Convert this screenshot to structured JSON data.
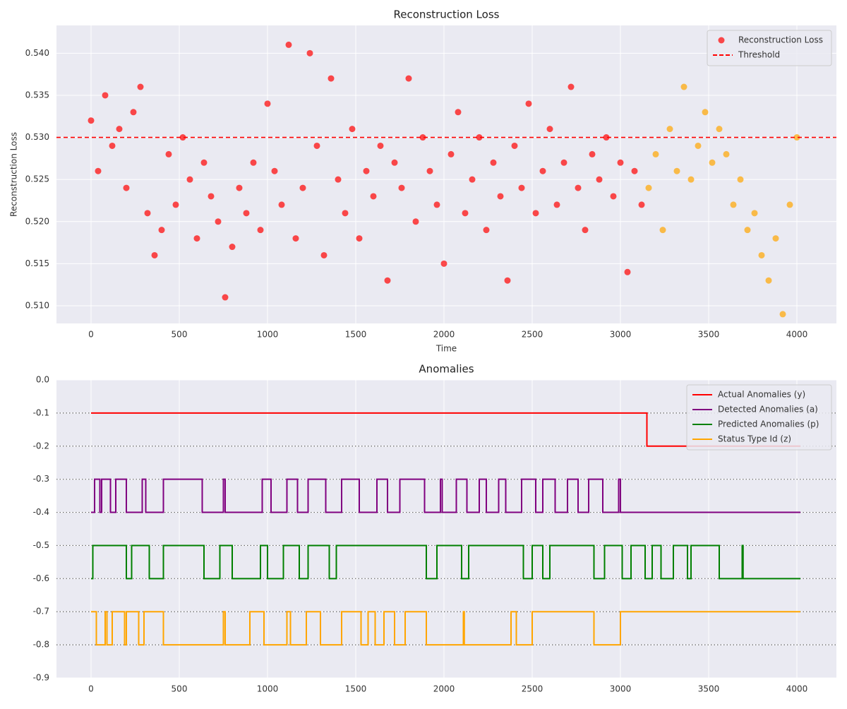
{
  "chart_data": [
    {
      "type": "scatter",
      "title": "Reconstruction Loss",
      "xlabel": "Time",
      "ylabel": "Reconstruction Loss",
      "xlim": [
        -196,
        4224
      ],
      "xticks": [
        0,
        500,
        1000,
        1500,
        2000,
        2500,
        3000,
        3500,
        4000
      ],
      "ylim": [
        0.5079,
        0.5433
      ],
      "yticks": [
        {
          "value": 0.51,
          "label": "0.510"
        },
        0.515,
        {
          "value": 0.52,
          "label": "0.520"
        },
        0.525,
        {
          "value": 0.53,
          "label": "0.530"
        },
        0.535,
        {
          "value": 0.54,
          "label": "0.540"
        }
      ],
      "grid": true,
      "legend": "upper right",
      "series": [
        {
          "name": "Reconstruction Loss",
          "color": "#ff0000",
          "x": [
            0,
            40,
            80,
            120,
            160,
            200,
            240,
            280,
            320,
            360,
            400,
            440,
            480,
            520,
            560,
            600,
            640,
            680,
            720,
            760,
            800,
            840,
            880,
            920,
            960,
            1000,
            1040,
            1080,
            1120,
            1160,
            1200,
            1240,
            1280,
            1320,
            1360,
            1400,
            1440,
            1480,
            1520,
            1560,
            1600,
            1640,
            1680,
            1720,
            1760,
            1800,
            1840,
            1880,
            1920,
            1960,
            2000,
            2040,
            2080,
            2120,
            2160,
            2200,
            2240,
            2280,
            2320,
            2360,
            2400,
            2440,
            2480,
            2520,
            2560,
            2600,
            2640,
            2680,
            2720,
            2760,
            2800,
            2840,
            2880,
            2920,
            2960,
            3000,
            3040,
            3080,
            3120
          ],
          "values": [
            0.532,
            0.526,
            0.535,
            0.529,
            0.531,
            0.524,
            0.533,
            0.536,
            0.521,
            0.516,
            0.519,
            0.528,
            0.522,
            0.53,
            0.525,
            0.518,
            0.527,
            0.523,
            0.52,
            0.511,
            0.517,
            0.524,
            0.521,
            0.527,
            0.519,
            0.534,
            0.526,
            0.522,
            0.541,
            0.518,
            0.524,
            0.54,
            0.529,
            0.516,
            0.537,
            0.525,
            0.521,
            0.531,
            0.518,
            0.526,
            0.523,
            0.529,
            0.513,
            0.527,
            0.524,
            0.537,
            0.52,
            0.53,
            0.526,
            0.522,
            0.515,
            0.528,
            0.533,
            0.521,
            0.525,
            0.53,
            0.519,
            0.527,
            0.523,
            0.513,
            0.529,
            0.524,
            0.534,
            0.521,
            0.526,
            0.531,
            0.522,
            0.527,
            0.536,
            0.524,
            0.519,
            0.528,
            0.525,
            0.53,
            0.523,
            0.527,
            0.514,
            0.526,
            0.522
          ]
        },
        {
          "color": "#ffa500",
          "x": [
            3160,
            3200,
            3240,
            3280,
            3320,
            3360,
            3400,
            3440,
            3480,
            3520,
            3560,
            3600,
            3640,
            3680,
            3720,
            3760,
            3800,
            3840,
            3880,
            3920,
            3960,
            4000
          ],
          "values": [
            0.524,
            0.528,
            0.519,
            0.531,
            0.526,
            0.536,
            0.525,
            0.529,
            0.533,
            0.527,
            0.531,
            0.528,
            0.522,
            0.525,
            0.519,
            0.521,
            0.516,
            0.513,
            0.518,
            0.509,
            0.522,
            0.53
          ]
        }
      ],
      "threshold": {
        "name": "Threshold",
        "value": 0.53,
        "color": "#ff0000"
      }
    },
    {
      "type": "step",
      "title": "Anomalies",
      "xlim": [
        -196,
        4224
      ],
      "xticks": [
        0,
        500,
        1000,
        1500,
        2000,
        2500,
        3000,
        3500,
        4000
      ],
      "ylim": [
        -0.9,
        0
      ],
      "yticks": [
        {
          "value": 0,
          "label": "0.0"
        },
        -0.1,
        -0.2,
        -0.3,
        -0.4,
        -0.5,
        -0.6,
        -0.7,
        -0.8,
        -0.9
      ],
      "grid": true,
      "legend": "upper right",
      "hlines": [
        -0.1,
        -0.2,
        -0.3,
        -0.4,
        -0.5,
        -0.6,
        -0.7,
        -0.8
      ],
      "series": [
        {
          "name": "Actual Anomalies (y)",
          "color": "#ff0000",
          "x": [
            0,
            3150,
            4020
          ],
          "values": [
            -0.1,
            -0.2,
            -0.2
          ]
        },
        {
          "name": "Detected Anomalies (a)",
          "color": "#800080",
          "x": [
            0,
            20,
            50,
            60,
            110,
            140,
            200,
            290,
            310,
            410,
            630,
            750,
            760,
            970,
            1020,
            1110,
            1170,
            1230,
            1330,
            1420,
            1520,
            1620,
            1680,
            1750,
            1890,
            1980,
            1990,
            2070,
            2130,
            2200,
            2240,
            2310,
            2350,
            2440,
            2520,
            2560,
            2630,
            2700,
            2760,
            2820,
            2900,
            2990,
            3000,
            4020
          ],
          "values": [
            -0.4,
            -0.3,
            -0.4,
            -0.3,
            -0.4,
            -0.3,
            -0.4,
            -0.3,
            -0.4,
            -0.3,
            -0.4,
            -0.3,
            -0.4,
            -0.3,
            -0.4,
            -0.3,
            -0.4,
            -0.3,
            -0.4,
            -0.3,
            -0.4,
            -0.3,
            -0.4,
            -0.3,
            -0.4,
            -0.3,
            -0.4,
            -0.3,
            -0.4,
            -0.3,
            -0.4,
            -0.3,
            -0.4,
            -0.3,
            -0.4,
            -0.3,
            -0.4,
            -0.3,
            -0.4,
            -0.3,
            -0.4,
            -0.3,
            -0.4,
            -0.4
          ]
        },
        {
          "name": "Predicted Anomalies (p)",
          "color": "#008000",
          "x": [
            0,
            10,
            200,
            230,
            330,
            410,
            640,
            730,
            800,
            960,
            1000,
            1090,
            1180,
            1230,
            1350,
            1390,
            1900,
            1960,
            2100,
            2140,
            2450,
            2500,
            2560,
            2600,
            2850,
            2910,
            3010,
            3060,
            3140,
            3180,
            3230,
            3300,
            3380,
            3400,
            3560,
            3690,
            3695,
            4020
          ],
          "values": [
            -0.6,
            -0.5,
            -0.6,
            -0.5,
            -0.6,
            -0.5,
            -0.6,
            -0.5,
            -0.6,
            -0.5,
            -0.6,
            -0.5,
            -0.6,
            -0.5,
            -0.6,
            -0.5,
            -0.6,
            -0.5,
            -0.6,
            -0.5,
            -0.6,
            -0.5,
            -0.6,
            -0.5,
            -0.6,
            -0.5,
            -0.6,
            -0.5,
            -0.6,
            -0.5,
            -0.6,
            -0.5,
            -0.6,
            -0.5,
            -0.6,
            -0.5,
            -0.6,
            -0.6
          ]
        },
        {
          "name": "Status Type Id (z)",
          "color": "#ffa500",
          "x": [
            0,
            30,
            80,
            90,
            120,
            190,
            200,
            270,
            300,
            410,
            750,
            760,
            900,
            980,
            1110,
            1130,
            1220,
            1300,
            1420,
            1530,
            1570,
            1610,
            1660,
            1720,
            1780,
            1900,
            2110,
            2115,
            2380,
            2410,
            2500,
            2850,
            3000,
            4020
          ],
          "values": [
            -0.7,
            -0.8,
            -0.7,
            -0.8,
            -0.7,
            -0.8,
            -0.7,
            -0.8,
            -0.7,
            -0.8,
            -0.7,
            -0.8,
            -0.7,
            -0.8,
            -0.7,
            -0.8,
            -0.7,
            -0.8,
            -0.7,
            -0.8,
            -0.7,
            -0.8,
            -0.7,
            -0.8,
            -0.7,
            -0.8,
            -0.7,
            -0.8,
            -0.7,
            -0.8,
            -0.7,
            -0.8,
            -0.7,
            -0.7
          ]
        }
      ]
    }
  ]
}
